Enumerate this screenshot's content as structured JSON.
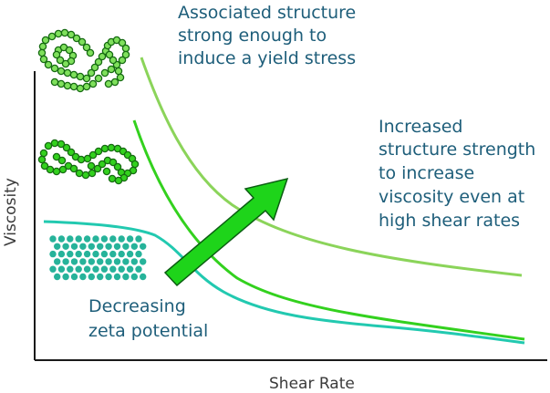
{
  "colors": {
    "light_green": "#8bd45a",
    "mid_green": "#33d11e",
    "teal": "#22c9b0",
    "arrow_fill": "#1ed41a",
    "arrow_stroke": "#0b5e12",
    "dot_outer": "#166b12",
    "dot_inner": "#7fe05c",
    "teal_dot": "#26b39a",
    "text": "#1e5e7a",
    "axis": "#1a1a1a"
  },
  "axes": {
    "x_label": "Shear Rate",
    "y_label": "Viscosity"
  },
  "annotations": {
    "top": [
      "Associated structure",
      "strong enough to",
      "induce a yield stress"
    ],
    "right": [
      "Increased",
      "structure strength",
      "to increase",
      "viscosity even at",
      "high shear rates"
    ],
    "bottom": [
      "Decreasing",
      "zeta potential"
    ]
  },
  "icons": {
    "top_structure": "particle-network-icon",
    "mid_structure": "particle-chain-icon",
    "bottom_structure": "dispersed-particles-icon",
    "arrow": "increase-arrow-icon"
  }
}
